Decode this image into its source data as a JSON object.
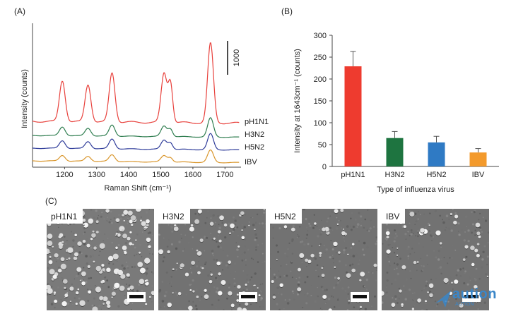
{
  "panels": {
    "a_label": "(A)",
    "b_label": "(B)",
    "c_label": "(C)"
  },
  "chart_data": [
    {
      "type": "line",
      "panel": "(A)",
      "xlabel": "Raman Shift (cm⁻¹)",
      "ylabel": "Intensity (counts)",
      "x_ticks": [
        "1200",
        "1300",
        "1400",
        "1500",
        "1600",
        "1700"
      ],
      "xlim": [
        1100,
        1750
      ],
      "scale_bar_label": "1000",
      "series": [
        {
          "name": "pH1N1",
          "color": "#e8413c",
          "peaks": [
            [
              1193,
              1210
            ],
            [
              1273,
              1100
            ],
            [
              1348,
              1450
            ],
            [
              1510,
              1450
            ],
            [
              1530,
              1150
            ],
            [
              1655,
              2350
            ]
          ]
        },
        {
          "name": "H3N2",
          "color": "#2e7d4f",
          "peaks": [
            [
              1193,
              260
            ],
            [
              1273,
              230
            ],
            [
              1348,
              330
            ],
            [
              1510,
              310
            ],
            [
              1530,
              220
            ],
            [
              1655,
              560
            ]
          ]
        },
        {
          "name": "H5N2",
          "color": "#2f3c9a",
          "peaks": [
            [
              1193,
              230
            ],
            [
              1273,
              210
            ],
            [
              1348,
              290
            ],
            [
              1510,
              270
            ],
            [
              1530,
              190
            ],
            [
              1655,
              470
            ]
          ]
        },
        {
          "name": "IBV",
          "color": "#d9962c",
          "peaks": [
            [
              1193,
              170
            ],
            [
              1273,
              150
            ],
            [
              1348,
              200
            ],
            [
              1510,
              190
            ],
            [
              1530,
              130
            ],
            [
              1655,
              360
            ]
          ]
        }
      ]
    },
    {
      "type": "bar",
      "panel": "(B)",
      "categories": [
        "pH1N1",
        "H3N2",
        "H5N2",
        "IBV"
      ],
      "values": [
        229,
        65,
        55,
        32
      ],
      "errors": [
        34,
        15,
        14,
        9
      ],
      "colors": [
        "#ee3b2f",
        "#1e7440",
        "#2f7ac4",
        "#f39a2c"
      ],
      "xlabel": "Type of influenza virus",
      "ylabel": "Intensity at 1643cm⁻¹ (counts)",
      "ylim": [
        0,
        300
      ],
      "y_ticks": [
        0,
        50,
        100,
        150,
        200,
        250,
        300
      ]
    }
  ],
  "sem_images": [
    {
      "label": "pH1N1"
    },
    {
      "label": "H3N2"
    },
    {
      "label": "H5N2"
    },
    {
      "label": "IBV"
    }
  ],
  "watermark": {
    "text": "aution",
    "sub": "AUTION"
  }
}
